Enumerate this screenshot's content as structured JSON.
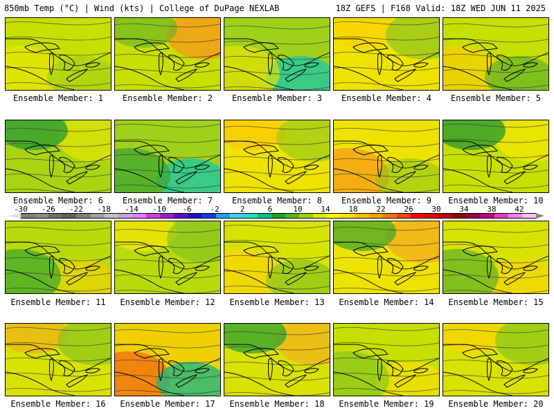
{
  "header": {
    "left": "850mb Temp (°C) | Wind (kts) | College of DuPage NEXLAB",
    "right": "18Z GEFS | F168 Valid: 18Z WED JUN 11 2025"
  },
  "colorbar": {
    "ticks": [
      "-30",
      "-26",
      "-22",
      "-18",
      "-14",
      "-10",
      "-6",
      "-2",
      "2",
      "6",
      "10",
      "14",
      "18",
      "22",
      "26",
      "30",
      "34",
      "38",
      "42"
    ],
    "colors": [
      "#7f7f7f",
      "#8c8c8c",
      "#6e6e6e",
      "#5f5f5f",
      "#808080",
      "#a0a0a0",
      "#c0c0c0",
      "#c8a0e0",
      "#e080f0",
      "#d040e0",
      "#a020c0",
      "#6010c0",
      "#2010c0",
      "#1040e0",
      "#20a0f0",
      "#40d0f0",
      "#20e0c0",
      "#10c080",
      "#20a020",
      "#60b010",
      "#a0d000",
      "#e0e800",
      "#ffff00",
      "#ffe000",
      "#ffc000",
      "#ffa000",
      "#ff7800",
      "#ff4000",
      "#ff0000",
      "#e00000",
      "#c00000",
      "#900000",
      "#a00040",
      "#c00080",
      "#e040c0",
      "#ff80e0",
      "#ffc0f0"
    ],
    "left_arrow": "#e0e0e0",
    "right_arrow": "#ffffff"
  },
  "members": [
    {
      "label": "Ensemble Member: 1",
      "base": "#c6df00",
      "accents": [
        {
          "c": "#f0e600",
          "o": 0.6
        },
        {
          "c": "#96cc20",
          "o": 0.5
        }
      ]
    },
    {
      "label": "Ensemble Member: 2",
      "base": "#c6df00",
      "accents": [
        {
          "c": "#f59a1a",
          "o": 0.8
        },
        {
          "c": "#5fb02a",
          "o": 0.6
        }
      ]
    },
    {
      "label": "Ensemble Member: 3",
      "base": "#9fd11a",
      "accents": [
        {
          "c": "#20c8a0",
          "o": 0.8
        },
        {
          "c": "#f0e600",
          "o": 0.6
        }
      ]
    },
    {
      "label": "Ensemble Member: 4",
      "base": "#eee200",
      "accents": [
        {
          "c": "#ffd000",
          "o": 0.6
        },
        {
          "c": "#7cc224",
          "o": 0.6
        }
      ]
    },
    {
      "label": "Ensemble Member: 5",
      "base": "#c6df00",
      "accents": [
        {
          "c": "#ffcc00",
          "o": 0.6
        },
        {
          "c": "#5fb02a",
          "o": 0.7
        }
      ]
    },
    {
      "label": "Ensemble Member: 6",
      "base": "#a8d414",
      "accents": [
        {
          "c": "#f0e600",
          "o": 0.6
        },
        {
          "c": "#2f9c2f",
          "o": 0.8
        }
      ]
    },
    {
      "label": "Ensemble Member: 7",
      "base": "#9fd11a",
      "accents": [
        {
          "c": "#20c8a0",
          "o": 0.8
        },
        {
          "c": "#3aa530",
          "o": 0.7
        }
      ]
    },
    {
      "label": "Ensemble Member: 8",
      "base": "#eee200",
      "accents": [
        {
          "c": "#ffc400",
          "o": 0.6
        },
        {
          "c": "#7cc224",
          "o": 0.5
        }
      ]
    },
    {
      "label": "Ensemble Member: 9",
      "base": "#eee200",
      "accents": [
        {
          "c": "#f59a1a",
          "o": 0.7
        },
        {
          "c": "#7cc224",
          "o": 0.5
        }
      ]
    },
    {
      "label": "Ensemble Member: 10",
      "base": "#c6df00",
      "accents": [
        {
          "c": "#ffe800",
          "o": 0.6
        },
        {
          "c": "#2f9c2f",
          "o": 0.8
        }
      ]
    },
    {
      "label": "Ensemble Member: 11",
      "base": "#b8da0c",
      "accents": [
        {
          "c": "#ffd000",
          "o": 0.5
        },
        {
          "c": "#3aa530",
          "o": 0.7
        }
      ]
    },
    {
      "label": "Ensemble Member: 12",
      "base": "#b8da0c",
      "accents": [
        {
          "c": "#ffe800",
          "o": 0.6
        },
        {
          "c": "#7cc224",
          "o": 0.6
        }
      ]
    },
    {
      "label": "Ensemble Member: 13",
      "base": "#d8e200",
      "accents": [
        {
          "c": "#ffd000",
          "o": 0.6
        },
        {
          "c": "#7cc224",
          "o": 0.6
        }
      ]
    },
    {
      "label": "Ensemble Member: 14",
      "base": "#eee200",
      "accents": [
        {
          "c": "#f5a820",
          "o": 0.7
        },
        {
          "c": "#3aa530",
          "o": 0.7
        }
      ]
    },
    {
      "label": "Ensemble Member: 15",
      "base": "#d8e200",
      "accents": [
        {
          "c": "#ffd000",
          "o": 0.5
        },
        {
          "c": "#5fb02a",
          "o": 0.7
        }
      ]
    },
    {
      "label": "Ensemble Member: 16",
      "base": "#d8e200",
      "accents": [
        {
          "c": "#f5a820",
          "o": 0.6
        },
        {
          "c": "#7cc224",
          "o": 0.6
        }
      ]
    },
    {
      "label": "Ensemble Member: 17",
      "base": "#eed000",
      "accents": [
        {
          "c": "#f07010",
          "o": 0.8
        },
        {
          "c": "#20b880",
          "o": 0.8
        }
      ]
    },
    {
      "label": "Ensemble Member: 18",
      "base": "#d8e200",
      "accents": [
        {
          "c": "#f5b020",
          "o": 0.7
        },
        {
          "c": "#3aa530",
          "o": 0.8
        }
      ]
    },
    {
      "label": "Ensemble Member: 19",
      "base": "#c6df00",
      "accents": [
        {
          "c": "#ffe000",
          "o": 0.6
        },
        {
          "c": "#7cc224",
          "o": 0.6
        }
      ]
    },
    {
      "label": "Ensemble Member: 20",
      "base": "#d8e200",
      "accents": [
        {
          "c": "#ffd000",
          "o": 0.6
        },
        {
          "c": "#7cc224",
          "o": 0.6
        }
      ]
    }
  ]
}
